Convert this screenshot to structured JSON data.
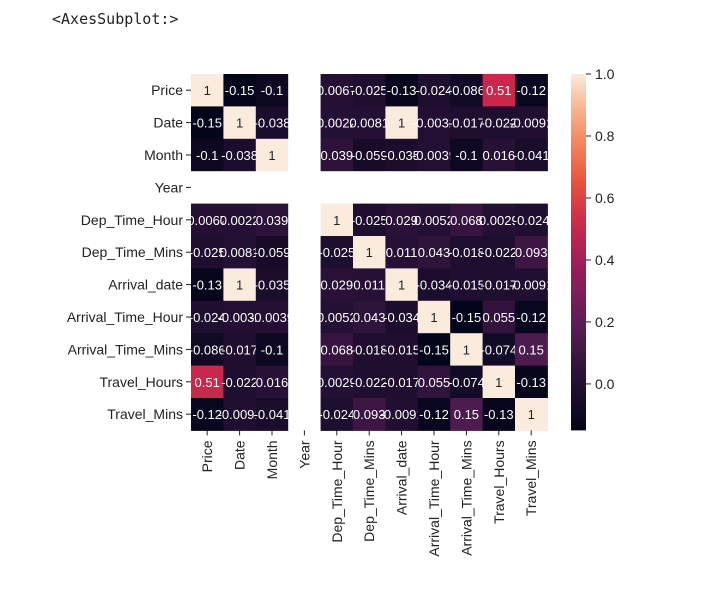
{
  "output_repr": "<AxesSubplot:>",
  "chart_data": {
    "type": "heatmap",
    "title": "",
    "labels": [
      "Price",
      "Date",
      "Month",
      "Year",
      "Dep_Time_Hour",
      "Dep_Time_Mins",
      "Arrival_date",
      "Arrival_Time_Hour",
      "Arrival_Time_Mins",
      "Travel_Hours",
      "Travel_Mins"
    ],
    "matrix": [
      [
        1,
        -0.15,
        -0.1,
        null,
        0.0067,
        -0.025,
        -0.13,
        -0.024,
        -0.086,
        0.51,
        -0.12
      ],
      [
        -0.15,
        1,
        -0.038,
        null,
        0.0022,
        0.0081,
        1,
        -0.0032,
        -0.017,
        -0.022,
        -0.0091
      ],
      [
        -0.1,
        -0.038,
        1,
        null,
        0.039,
        -0.059,
        -0.035,
        -0.0039,
        -0.1,
        0.016,
        -0.041
      ],
      [
        null,
        null,
        null,
        null,
        null,
        null,
        null,
        null,
        null,
        null,
        null
      ],
      [
        0.0067,
        0.0022,
        0.039,
        null,
        1,
        -0.025,
        0.029,
        0.0052,
        0.068,
        0.0029,
        -0.024
      ],
      [
        -0.025,
        0.0081,
        -0.059,
        null,
        -0.025,
        1,
        0.011,
        0.043,
        -0.018,
        -0.022,
        0.093
      ],
      [
        -0.13,
        1,
        -0.035,
        null,
        0.029,
        0.011,
        1,
        -0.034,
        -0.015,
        -0.017,
        -0.0091
      ],
      [
        -0.024,
        -0.0032,
        -0.0039,
        null,
        0.0052,
        0.043,
        -0.034,
        1,
        -0.15,
        0.055,
        -0.12
      ],
      [
        -0.086,
        -0.017,
        -0.1,
        null,
        0.068,
        -0.018,
        -0.015,
        -0.15,
        1,
        -0.074,
        0.15
      ],
      [
        0.51,
        -0.022,
        0.016,
        null,
        0.0029,
        -0.022,
        -0.017,
        0.055,
        -0.074,
        1,
        -0.13
      ],
      [
        -0.12,
        -0.0091,
        -0.041,
        null,
        -0.024,
        0.093,
        -0.0091,
        -0.12,
        0.15,
        -0.13,
        1
      ]
    ],
    "display_labels": [
      [
        "1",
        "-0.15",
        "-0.1",
        "",
        "0.0067",
        "-0.025",
        "-0.13",
        "-0.024",
        "-0.086",
        "0.51",
        "-0.12"
      ],
      [
        "-0.15",
        "1",
        "-0.038",
        "",
        "0.0022",
        "0.0081",
        "1",
        "-0.0032",
        "-0.017",
        "-0.022",
        "-0.0091"
      ],
      [
        "-0.1",
        "-0.038",
        "1",
        "",
        "0.039",
        "-0.059",
        "-0.035",
        "-0.0039",
        "-0.1",
        "0.016",
        "-0.041"
      ],
      [
        "",
        "",
        "",
        "",
        "",
        "",
        "",
        "",
        "",
        "",
        ""
      ],
      [
        "0.0067",
        "0.0022",
        "0.039",
        "",
        "1",
        "-0.025",
        "0.029",
        "0.0052",
        "0.068",
        "0.0029",
        "-0.024"
      ],
      [
        "-0.025",
        "0.0081",
        "-0.059",
        "",
        "-0.025",
        "1",
        "0.011",
        "0.043",
        "-0.018",
        "-0.022",
        "0.093"
      ],
      [
        "-0.13",
        "1",
        "-0.035",
        "",
        "0.029",
        "0.011",
        "1",
        "-0.034",
        "-0.015",
        "-0.017",
        "-0.0091"
      ],
      [
        "-0.024",
        "-0.0032",
        "-0.0039",
        "",
        "0.0052",
        "0.043",
        "-0.034",
        "1",
        "-0.15",
        "0.055",
        "-0.12"
      ],
      [
        "-0.086",
        "-0.017",
        "-0.1",
        "",
        "0.068",
        "-0.018",
        "-0.015",
        "-0.15",
        "1",
        "-0.074",
        "0.15"
      ],
      [
        "0.51",
        "-0.022",
        "0.016",
        "",
        "0.0029",
        "-0.022",
        "-0.017",
        "0.055",
        "-0.074",
        "1",
        "-0.13"
      ],
      [
        "-0.12",
        "-0.0091",
        "-0.041",
        "",
        "-0.024",
        "0.093",
        "-0.0091",
        "-0.12",
        "0.15",
        "-0.13",
        "1"
      ]
    ],
    "colorbar": {
      "ticks": [
        1.0,
        0.8,
        0.6,
        0.4,
        0.2,
        0.0
      ],
      "tick_labels": [
        "1.0",
        "0.8",
        "0.6",
        "0.4",
        "0.2",
        "0.0"
      ],
      "range": [
        -0.15,
        1.0
      ],
      "colormap": "rocket"
    },
    "missing_color": "#ffffff"
  }
}
